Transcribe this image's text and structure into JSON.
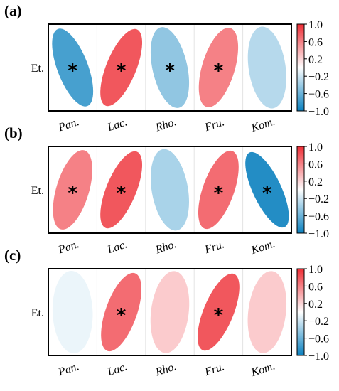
{
  "chart_data": [
    {
      "type": "heatmap",
      "panel_label": "(a)",
      "row_label": "Et.",
      "categories": [
        "Pan.",
        "Lac.",
        "Rho.",
        "Fru.",
        "Kom."
      ],
      "values": [
        -0.75,
        0.8,
        -0.45,
        0.6,
        -0.3
      ],
      "significant": [
        true,
        true,
        true,
        true,
        false
      ],
      "significance_marker": "*",
      "colorbar_ticks": [
        "1.0",
        "0.6",
        "0.2",
        "−0.2",
        "−0.6",
        "−1.0"
      ],
      "colorbar_range": [
        -1.0,
        1.0
      ]
    },
    {
      "type": "heatmap",
      "panel_label": "(b)",
      "row_label": "Et.",
      "categories": [
        "Pan.",
        "Lac.",
        "Rho.",
        "Fru.",
        "Kom."
      ],
      "values": [
        0.6,
        0.8,
        -0.35,
        0.7,
        -0.9
      ],
      "significant": [
        true,
        true,
        false,
        true,
        true
      ],
      "significance_marker": "*",
      "colorbar_ticks": [
        "1.0",
        "0.6",
        "0.2",
        "−0.2",
        "−0.6",
        "−1.0"
      ],
      "colorbar_range": [
        -1.0,
        1.0
      ]
    },
    {
      "type": "heatmap",
      "panel_label": "(c)",
      "row_label": "Et.",
      "categories": [
        "Pan.",
        "Lac.",
        "Rho.",
        "Fru.",
        "Kom."
      ],
      "values": [
        -0.08,
        0.7,
        0.25,
        0.8,
        0.25
      ],
      "significant": [
        false,
        true,
        false,
        true,
        false
      ],
      "significance_marker": "*",
      "colorbar_ticks": [
        "1.0",
        "0.6",
        "0.2",
        "−0.2",
        "−0.6",
        "−1.0"
      ],
      "colorbar_range": [
        -1.0,
        1.0
      ]
    }
  ],
  "colors": {
    "negative": "#0a80bf",
    "neutral": "#ffffff",
    "positive": "#ee2d35"
  }
}
